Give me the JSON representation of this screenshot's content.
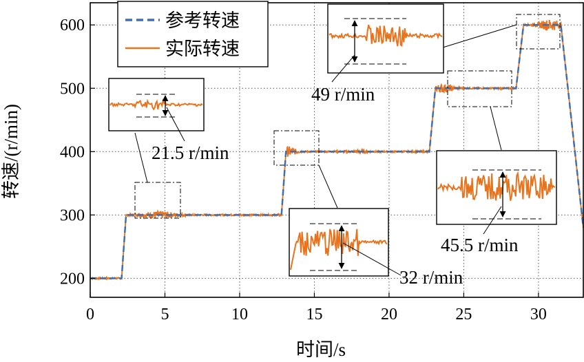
{
  "chart_data": {
    "type": "line",
    "xlabel": "时间/s",
    "ylabel": "转速/(r/min)",
    "xlim": [
      0,
      33
    ],
    "ylim": [
      170,
      635
    ],
    "x_ticks": [
      0,
      5,
      10,
      15,
      20,
      25,
      30
    ],
    "y_ticks": [
      200,
      300,
      400,
      500,
      600
    ],
    "grid": "dotted",
    "legend": "top-left",
    "series": [
      {
        "name": "参考转速",
        "style": "dashed",
        "color": "#3f6fb0",
        "x": [
          0,
          2.1,
          2.4,
          12.8,
          13.1,
          22.7,
          23.1,
          28.5,
          29.0,
          31.5,
          33.0
        ],
        "y": [
          200,
          200,
          300,
          300,
          400,
          400,
          500,
          500,
          600,
          600,
          280
        ]
      },
      {
        "name": "实际转速",
        "style": "solid",
        "color": "#e8731c",
        "x": [
          0,
          2.1,
          2.4,
          12.8,
          13.1,
          22.7,
          23.1,
          28.5,
          29.0,
          31.5,
          33.0
        ],
        "y": [
          200,
          200,
          300,
          300,
          400,
          400,
          500,
          500,
          600,
          600,
          280
        ]
      }
    ],
    "annotations": [
      {
        "text": "21.5 r/min",
        "value": 21.5,
        "unit": "r/min"
      },
      {
        "text": "32 r/min",
        "value": 32,
        "unit": "r/min"
      },
      {
        "text": "49 r/min",
        "value": 49,
        "unit": "r/min"
      },
      {
        "text": "45.5 r/min",
        "value": 45.5,
        "unit": "r/min"
      }
    ]
  }
}
